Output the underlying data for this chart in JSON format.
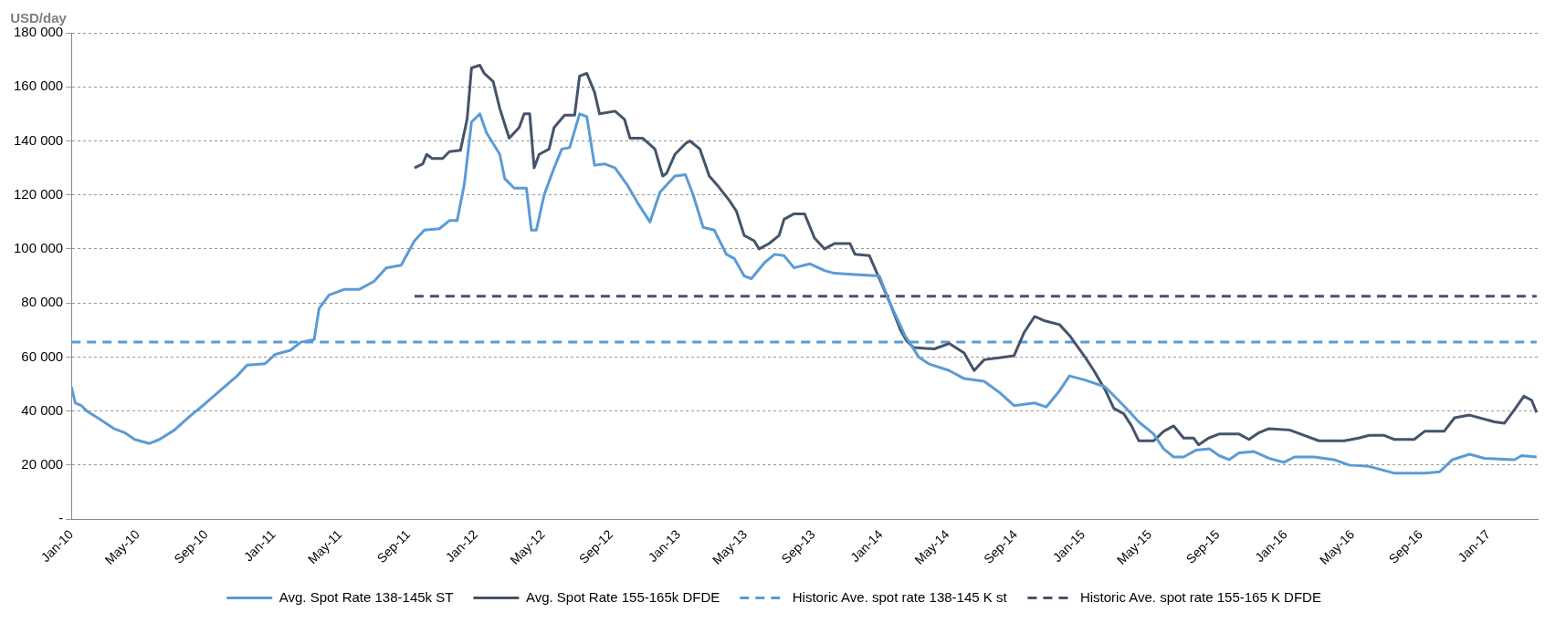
{
  "chart_data": {
    "type": "line",
    "ylabel": "USD/day",
    "marker": "none",
    "grid": "y",
    "legend": "bottom",
    "xlim": [
      "2010-01-01",
      "2017-03-31"
    ],
    "xticks": [
      {
        "value": "2010-01-01",
        "label": "Jan-10"
      },
      {
        "value": "2010-05-01",
        "label": "May-10"
      },
      {
        "value": "2010-09-01",
        "label": "Sep-10"
      },
      {
        "value": "2011-01-01",
        "label": "Jan-11"
      },
      {
        "value": "2011-05-01",
        "label": "May-11"
      },
      {
        "value": "2011-09-01",
        "label": "Sep-11"
      },
      {
        "value": "2012-01-01",
        "label": "Jan-12"
      },
      {
        "value": "2012-05-01",
        "label": "May-12"
      },
      {
        "value": "2012-09-01",
        "label": "Sep-12"
      },
      {
        "value": "2013-01-01",
        "label": "Jan-13"
      },
      {
        "value": "2013-05-01",
        "label": "May-13"
      },
      {
        "value": "2013-09-01",
        "label": "Sep-13"
      },
      {
        "value": "2014-01-01",
        "label": "Jan-14"
      },
      {
        "value": "2014-05-01",
        "label": "May-14"
      },
      {
        "value": "2014-09-01",
        "label": "Sep-14"
      },
      {
        "value": "2015-01-01",
        "label": "Jan-15"
      },
      {
        "value": "2015-05-01",
        "label": "May-15"
      },
      {
        "value": "2015-09-01",
        "label": "Sep-15"
      },
      {
        "value": "2016-01-01",
        "label": "Jan-16"
      },
      {
        "value": "2016-05-01",
        "label": "May-16"
      },
      {
        "value": "2016-09-01",
        "label": "Sep-16"
      },
      {
        "value": "2017-01-01",
        "label": "Jan-17"
      }
    ],
    "ylim": [
      0,
      180000
    ],
    "yticks": [
      {
        "value": 0,
        "label": "-"
      },
      {
        "value": 20000,
        "label": "20 000"
      },
      {
        "value": 40000,
        "label": "40 000"
      },
      {
        "value": 60000,
        "label": "60 000"
      },
      {
        "value": 80000,
        "label": "80 000"
      },
      {
        "value": 100000,
        "label": "100 000"
      },
      {
        "value": 120000,
        "label": "120 000"
      },
      {
        "value": 140000,
        "label": "140 000"
      },
      {
        "value": 160000,
        "label": "160 000"
      },
      {
        "value": 180000,
        "label": "180 000"
      }
    ],
    "series": [
      {
        "name": "Avg. Spot Rate 138-145k ST",
        "color": "#5b9bd5",
        "line_style": "solid",
        "x": [
          "2010-01-01",
          "2010-01-08",
          "2010-01-19",
          "2010-01-29",
          "2010-02-21",
          "2010-03-19",
          "2010-04-07",
          "2010-04-25",
          "2010-05-22",
          "2010-06-09",
          "2010-07-06",
          "2010-08-02",
          "2010-08-29",
          "2010-09-26",
          "2010-10-27",
          "2010-11-14",
          "2010-12-16",
          "2011-01-04",
          "2011-01-31",
          "2011-02-19",
          "2011-03-15",
          "2011-03-24",
          "2011-04-11",
          "2011-05-08",
          "2011-06-04",
          "2011-07-01",
          "2011-07-23",
          "2011-08-19",
          "2011-09-12",
          "2011-09-30",
          "2011-10-27",
          "2011-11-14",
          "2011-11-28",
          "2011-12-11",
          "2011-12-24",
          "2012-01-08",
          "2012-01-20",
          "2012-02-13",
          "2012-02-22",
          "2012-03-10",
          "2012-04-01",
          "2012-04-10",
          "2012-04-19",
          "2012-05-03",
          "2012-05-21",
          "2012-06-04",
          "2012-06-18",
          "2012-07-06",
          "2012-07-19",
          "2012-08-02",
          "2012-08-20",
          "2012-09-08",
          "2012-09-29",
          "2012-10-19",
          "2012-11-10",
          "2012-11-28",
          "2012-12-25",
          "2013-01-13",
          "2013-01-27",
          "2013-02-14",
          "2013-03-06",
          "2013-03-28",
          "2013-04-11",
          "2013-04-29",
          "2013-05-12",
          "2013-06-05",
          "2013-06-23",
          "2013-07-10",
          "2013-07-28",
          "2013-08-25",
          "2013-09-21",
          "2013-10-09",
          "2013-11-15",
          "2013-12-29",
          "2014-01-17",
          "2014-02-13",
          "2014-03-10",
          "2014-03-28",
          "2014-05-04",
          "2014-05-31",
          "2014-07-06",
          "2014-08-02",
          "2014-08-29",
          "2014-10-05",
          "2014-10-26",
          "2014-11-19",
          "2014-12-07",
          "2015-01-04",
          "2015-02-09",
          "2015-03-15",
          "2015-04-11",
          "2015-05-08",
          "2015-05-26",
          "2015-06-13",
          "2015-07-01",
          "2015-07-23",
          "2015-08-17",
          "2015-09-03",
          "2015-09-21",
          "2015-10-09",
          "2015-11-05",
          "2015-12-02",
          "2015-12-29",
          "2016-01-17",
          "2016-02-22",
          "2016-03-28",
          "2016-04-25",
          "2016-05-31",
          "2016-07-15",
          "2016-09-08",
          "2016-10-05",
          "2016-10-28",
          "2016-11-28",
          "2016-12-25",
          "2017-02-17",
          "2017-03-02",
          "2017-03-29"
        ],
        "values": [
          49000,
          43000,
          42000,
          40000,
          37000,
          33500,
          32000,
          29500,
          28000,
          29500,
          33000,
          38000,
          42500,
          47500,
          53000,
          57000,
          57500,
          61000,
          62500,
          65500,
          66500,
          78000,
          83000,
          85000,
          85000,
          88000,
          93000,
          94000,
          103000,
          107000,
          107500,
          110500,
          110500,
          124000,
          147000,
          150000,
          143000,
          135000,
          126000,
          122500,
          122500,
          107000,
          107000,
          120000,
          130000,
          137000,
          137500,
          150000,
          149000,
          131000,
          131500,
          130000,
          124000,
          117000,
          110000,
          121000,
          127000,
          127500,
          120000,
          108000,
          107000,
          98000,
          96500,
          90000,
          89000,
          95000,
          98000,
          97500,
          93000,
          94500,
          92000,
          91000,
          90500,
          90000,
          80000,
          68000,
          60000,
          57500,
          55000,
          52000,
          51000,
          47000,
          42000,
          43000,
          41500,
          47500,
          53000,
          51500,
          49000,
          42000,
          36000,
          31500,
          26000,
          23000,
          23000,
          25500,
          26000,
          23500,
          22000,
          24500,
          25000,
          22500,
          21000,
          23000,
          23000,
          22000,
          20000,
          19500,
          17000,
          17000,
          17500,
          22000,
          24000,
          22500,
          22000,
          23500,
          23000
        ]
      },
      {
        "name": "Avg. Spot Rate 155-165k DFDE",
        "color": "#44546a",
        "line_style": "solid",
        "x": [
          "2011-09-12",
          "2011-09-27",
          "2011-10-04",
          "2011-10-14",
          "2011-11-02",
          "2011-11-14",
          "2011-12-04",
          "2011-12-16",
          "2011-12-24",
          "2012-01-08",
          "2012-01-16",
          "2012-02-01",
          "2012-02-13",
          "2012-03-01",
          "2012-03-19",
          "2012-03-28",
          "2012-04-07",
          "2012-04-15",
          "2012-04-24",
          "2012-05-12",
          "2012-05-21",
          "2012-06-09",
          "2012-06-27",
          "2012-07-06",
          "2012-07-19",
          "2012-08-02",
          "2012-08-11",
          "2012-09-08",
          "2012-09-25",
          "2012-10-05",
          "2012-10-28",
          "2012-11-19",
          "2012-12-03",
          "2012-12-10",
          "2012-12-25",
          "2013-01-13",
          "2013-01-21",
          "2013-02-08",
          "2013-02-25",
          "2013-03-14",
          "2013-04-02",
          "2013-04-15",
          "2013-04-29",
          "2013-05-17",
          "2013-05-26",
          "2013-06-13",
          "2013-07-01",
          "2013-07-10",
          "2013-07-28",
          "2013-08-16",
          "2013-09-03",
          "2013-09-21",
          "2013-10-09",
          "2013-11-06",
          "2013-11-15",
          "2013-12-11",
          "2013-12-29",
          "2014-01-17",
          "2014-02-05",
          "2014-02-16",
          "2014-03-01",
          "2014-04-07",
          "2014-05-04",
          "2014-05-31",
          "2014-06-18",
          "2014-07-06",
          "2014-08-11",
          "2014-08-29",
          "2014-09-16",
          "2014-10-05",
          "2014-10-22",
          "2014-11-19",
          "2014-12-07",
          "2015-01-04",
          "2015-01-20",
          "2015-02-09",
          "2015-02-25",
          "2015-03-15",
          "2015-03-29",
          "2015-04-11",
          "2015-05-08",
          "2015-05-26",
          "2015-06-13",
          "2015-07-01",
          "2015-07-19",
          "2015-07-28",
          "2015-08-15",
          "2015-09-03",
          "2015-10-09",
          "2015-10-27",
          "2015-11-14",
          "2015-12-02",
          "2016-01-08",
          "2016-02-04",
          "2016-03-01",
          "2016-04-16",
          "2016-05-12",
          "2016-05-31",
          "2016-06-27",
          "2016-07-15",
          "2016-08-20",
          "2016-09-08",
          "2016-10-13",
          "2016-11-01",
          "2016-11-28",
          "2017-01-12",
          "2017-01-30",
          "2017-02-17",
          "2017-03-06",
          "2017-03-20",
          "2017-03-29"
        ],
        "values": [
          130000,
          131500,
          135000,
          133500,
          133500,
          136000,
          136500,
          148000,
          167000,
          168000,
          165000,
          162000,
          152000,
          141000,
          145000,
          150000,
          150000,
          130000,
          135000,
          137000,
          145000,
          149500,
          149500,
          164000,
          165000,
          158000,
          150000,
          151000,
          148000,
          141000,
          141000,
          137000,
          127000,
          128000,
          135000,
          139000,
          140000,
          137000,
          127000,
          123000,
          118000,
          114000,
          105000,
          103000,
          100000,
          102000,
          105000,
          111000,
          113000,
          113000,
          104000,
          100000,
          102000,
          102000,
          98000,
          97500,
          89000,
          80000,
          70000,
          66000,
          63500,
          63000,
          65000,
          61500,
          55000,
          59000,
          60000,
          60500,
          69000,
          75000,
          73500,
          72000,
          68000,
          60000,
          55000,
          48000,
          41000,
          39000,
          34500,
          29000,
          29000,
          32500,
          34500,
          30000,
          30000,
          27500,
          30000,
          31500,
          31500,
          29500,
          32000,
          33500,
          33000,
          31000,
          29000,
          29000,
          30000,
          31000,
          31000,
          29500,
          29500,
          32500,
          32500,
          37500,
          38500,
          36000,
          35500,
          40500,
          45500,
          44000,
          39500
        ]
      },
      {
        "name": "Historic Ave. spot rate 138-145 K st",
        "color": "#5b9bd5",
        "line_style": "dashed",
        "x": [
          "2010-01-01",
          "2017-03-29"
        ],
        "values": [
          65500,
          65500
        ]
      },
      {
        "name": "Historic Ave. spot rate 155-165 K DFDE",
        "color": "#44546a",
        "line_style": "dashed",
        "x": [
          "2011-09-12",
          "2017-03-29"
        ],
        "values": [
          82500,
          82500
        ]
      }
    ]
  }
}
